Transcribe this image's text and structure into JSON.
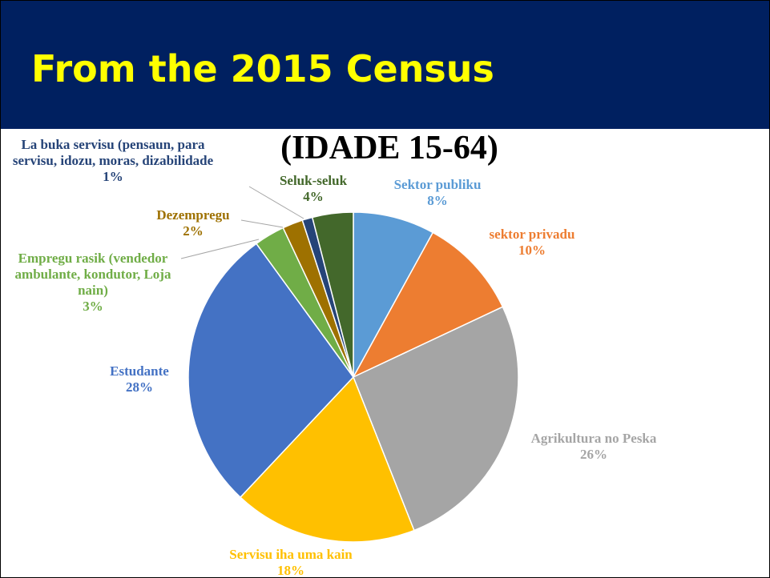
{
  "header": {
    "title": "From the 2015 Census"
  },
  "chart_data": {
    "type": "pie",
    "title": "(IDADE 15-64)",
    "categories": [
      "Sektor publiku",
      "sektor privadu",
      "Agrikultura no Peska",
      "Servisu iha uma kain",
      "Estudante",
      "Empregu rasik (vendedor ambulante, kondutor, Loja nain)",
      "Dezempregu",
      "La buka servisu (pensaun, para servisu, idozu, moras, dizabilidade",
      "Seluk-seluk"
    ],
    "values": [
      8,
      10,
      26,
      18,
      28,
      3,
      2,
      1,
      4
    ],
    "value_labels": [
      "8%",
      "10%",
      "26%",
      "18%",
      "28%",
      "3%",
      "2%",
      "1%",
      "4%"
    ],
    "colors": [
      "#5b9bd5",
      "#ed7d31",
      "#a5a5a5",
      "#ffc000",
      "#4472c4",
      "#70ad47",
      "#9e7100",
      "#264478",
      "#43682b"
    ]
  }
}
